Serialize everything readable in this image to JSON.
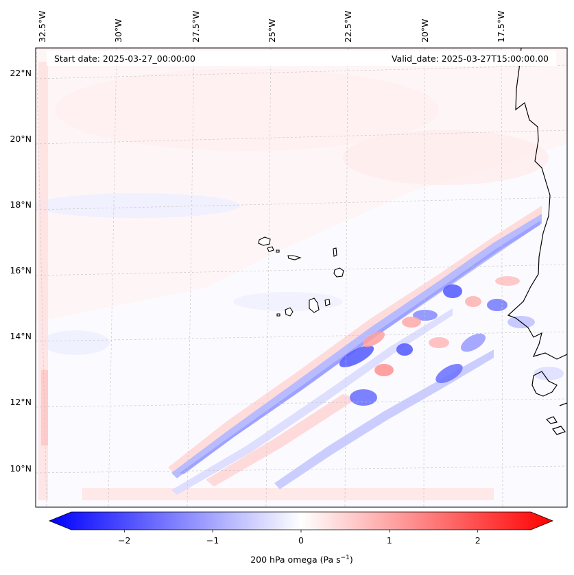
{
  "header": {
    "start_date": "Start date: 2025-03-27_00:00:00",
    "valid_date": "Valid_date: 2025-03-27T15:00:00.00"
  },
  "map": {
    "projection": "lambert-conformal",
    "longitude_ticks": [
      "32.5°W",
      "30°W",
      "27.5°W",
      "25°W",
      "22.5°W",
      "20°W",
      "17.5°W"
    ],
    "latitude_ticks": [
      "22°N",
      "20°N",
      "18°N",
      "16°N",
      "14°N",
      "12°N",
      "10°N"
    ],
    "features": [
      "cape-verde-islands",
      "west-africa-coastline"
    ]
  },
  "colorbar": {
    "colormap": "bwr",
    "min": -2.6,
    "max": 2.6,
    "extend": "both",
    "tick_labels": [
      "−2",
      "−1",
      "0",
      "1",
      "2"
    ],
    "tick_values": [
      -2,
      -1,
      0,
      1,
      2
    ],
    "label_text": "200 hPa omega (Pa s",
    "label_exponent": "−1",
    "label_close": ")",
    "colors": {
      "negative": "#0000ff",
      "zero": "#ffffff",
      "positive": "#ff0000"
    }
  }
}
